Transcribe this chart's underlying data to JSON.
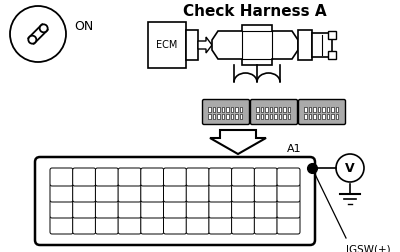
{
  "title": "Check Harness A",
  "bg_color": "#ffffff",
  "fg_color": "#000000",
  "on_label": "ON",
  "a1_label": "A1",
  "igsw_label": "IGSW(+)",
  "ecm_label": "ECM",
  "figsize": [
    4.0,
    2.52
  ],
  "dpi": 100
}
